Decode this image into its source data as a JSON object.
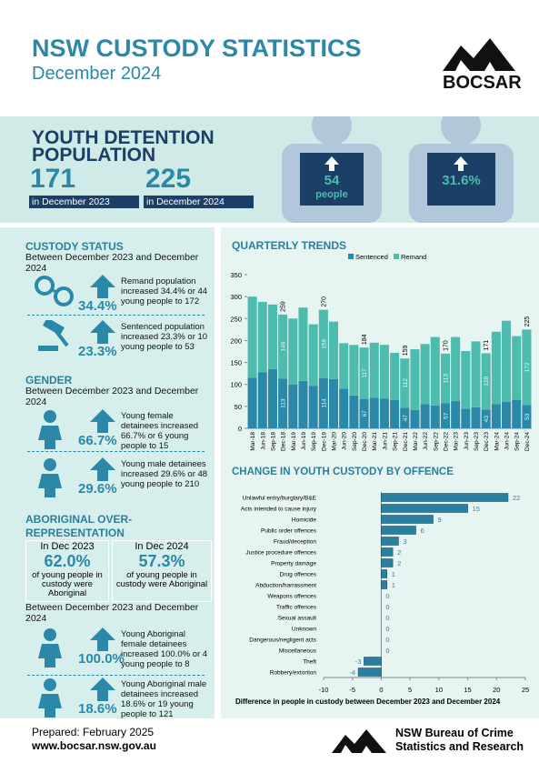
{
  "header": {
    "title": "NSW CUSTODY STATISTICS",
    "subtitle": "December 2024",
    "logo": "BOCSAR"
  },
  "youth_detention": {
    "title": "YOUTH DETENTION POPULATION",
    "before": {
      "value": "171",
      "caption": "in December 2023"
    },
    "after": {
      "value": "225",
      "caption": "in December 2024"
    },
    "change_people": {
      "value": "54",
      "unit": "people"
    },
    "change_percent": "31.6%"
  },
  "custody_status": {
    "heading": "CUSTODY STATUS",
    "period": "Between December 2023 and December 2024",
    "items": [
      {
        "percent": "34.4%",
        "text": "Remand population increased 34.4% or 44 young people to 172"
      },
      {
        "percent": "23.3%",
        "text": "Sentenced population increased 23.3% or 10 young people to 53"
      }
    ]
  },
  "gender": {
    "heading": "GENDER",
    "period": "Between December 2023 and December 2024",
    "items": [
      {
        "percent": "66.7%",
        "text": "Young female detainees increased 66.7% or 6 young people to 15"
      },
      {
        "percent": "29.6%",
        "text": "Young male detainees increased 29.6% or 48 young people to 210"
      }
    ]
  },
  "aboriginal": {
    "heading": "ABORIGINAL OVER-REPRESENTATION",
    "boxes": [
      {
        "label": "In Dec 2023",
        "percent": "62.0%",
        "text": "of young people in custody were Aboriginal"
      },
      {
        "label": "In Dec 2024",
        "percent": "57.3%",
        "text": "of young people in custody were Aboriginal"
      }
    ],
    "period": "Between December 2023 and December 2024",
    "items": [
      {
        "percent": "100.0%",
        "text": "Young Aboriginal female detainees increased 100.0% or 4 young people to 8"
      },
      {
        "percent": "18.6%",
        "text": "Young Aboriginal male detainees increased 18.6% or 19 young people to 121"
      }
    ]
  },
  "footer": {
    "prepared": "Prepared: February 2025",
    "website": "www.bocsar.nsw.gov.au",
    "organisation": "NSW Bureau of Crime Statistics and Research"
  },
  "chart_data": [
    {
      "type": "stacked_bar",
      "title": "QUARTERLY TRENDS",
      "categories": [
        "Mar-18",
        "Jun-18",
        "Sep-18",
        "Dec-18",
        "Mar-19",
        "Jun-19",
        "Sep-19",
        "Dec-19",
        "Mar-20",
        "Jun-20",
        "Sep-20",
        "Dec-20",
        "Mar-21",
        "Jun-21",
        "Sep-21",
        "Dec-21",
        "Mar-22",
        "Jun-22",
        "Sep-22",
        "Dec-22",
        "Mar-23",
        "Jun-23",
        "Sep-23",
        "Dec-23",
        "Mar-24",
        "Jun-24",
        "Sep-24",
        "Dec-24"
      ],
      "series": [
        {
          "name": "Sentenced",
          "color": "#2b88a8",
          "values": [
            115,
            128,
            135,
            113,
            100,
            108,
            97,
            114,
            112,
            90,
            75,
            67,
            70,
            68,
            65,
            47,
            42,
            55,
            52,
            57,
            62,
            45,
            48,
            43,
            55,
            60,
            65,
            53
          ],
          "value_labels": [
            null,
            null,
            null,
            "113",
            null,
            null,
            null,
            "114",
            null,
            null,
            null,
            "67",
            null,
            null,
            null,
            "47",
            null,
            null,
            null,
            "57",
            null,
            null,
            null,
            "43",
            null,
            null,
            null,
            "53"
          ]
        },
        {
          "name": "Remand",
          "color": "#4dbcae",
          "values": [
            185,
            160,
            147,
            146,
            150,
            167,
            140,
            156,
            131,
            104,
            115,
            117,
            125,
            122,
            107,
            112,
            138,
            137,
            156,
            113,
            146,
            131,
            150,
            128,
            165,
            185,
            145,
            172
          ],
          "value_labels": [
            null,
            null,
            null,
            "146",
            null,
            null,
            null,
            "156",
            null,
            null,
            null,
            "117",
            null,
            null,
            null,
            "112",
            null,
            null,
            null,
            "113",
            null,
            null,
            null,
            "128",
            null,
            null,
            null,
            "172"
          ]
        }
      ],
      "total_labels": [
        null,
        null,
        null,
        259,
        null,
        null,
        null,
        270,
        null,
        null,
        null,
        184,
        null,
        null,
        null,
        159,
        null,
        null,
        null,
        170,
        null,
        null,
        null,
        171,
        null,
        null,
        null,
        225
      ],
      "ylim": [
        0,
        350
      ],
      "yticks": [
        0,
        50,
        100,
        150,
        200,
        250,
        300,
        350
      ],
      "grid": false,
      "legend": "top"
    },
    {
      "type": "horizontal_bar",
      "title": "CHANGE IN YOUTH CUSTODY BY OFFENCE",
      "categories": [
        "Unlawful entry/burglary/B&E",
        "Acts intended to cause injury",
        "Homicide",
        "Public order offences",
        "Fraud/deception",
        "Justice procedure offences",
        "Property damage",
        "Drug offences",
        "Abduction/harrassment",
        "Weapons offences",
        "Traffic offences",
        "Sexual assault",
        "Unknown",
        "Dangerous/negligent acts",
        "Miscellaneous",
        "Theft",
        "Robbery/extortion"
      ],
      "values": [
        22,
        15,
        9,
        6,
        3,
        2,
        2,
        1,
        1,
        0,
        0,
        0,
        0,
        0,
        0,
        -3,
        -4
      ],
      "color": "#2b7f9e",
      "xlim": [
        -10,
        25
      ],
      "xticks": [
        -10,
        -5,
        0,
        5,
        10,
        15,
        20,
        25
      ],
      "xlabel": "Difference in people in custody between December 2023 and December 2024",
      "grid": false
    }
  ]
}
